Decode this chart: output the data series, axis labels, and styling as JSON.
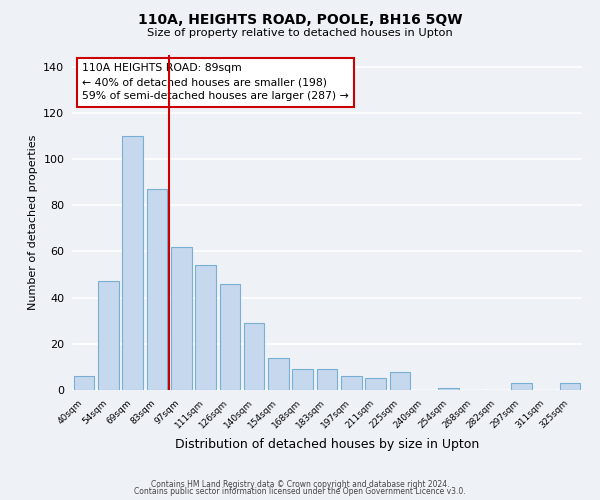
{
  "title": "110A, HEIGHTS ROAD, POOLE, BH16 5QW",
  "subtitle": "Size of property relative to detached houses in Upton",
  "xlabel": "Distribution of detached houses by size in Upton",
  "ylabel": "Number of detached properties",
  "bin_labels": [
    "40sqm",
    "54sqm",
    "69sqm",
    "83sqm",
    "97sqm",
    "111sqm",
    "126sqm",
    "140sqm",
    "154sqm",
    "168sqm",
    "183sqm",
    "197sqm",
    "211sqm",
    "225sqm",
    "240sqm",
    "254sqm",
    "268sqm",
    "282sqm",
    "297sqm",
    "311sqm",
    "325sqm"
  ],
  "bin_values": [
    6,
    47,
    110,
    87,
    62,
    54,
    46,
    29,
    14,
    9,
    9,
    6,
    5,
    8,
    0,
    1,
    0,
    0,
    3,
    0,
    3
  ],
  "bar_color": "#c5d8ed",
  "bar_edge_color": "#7aafd4",
  "property_line_index": 3,
  "property_line_color": "#cc0000",
  "annotation_text": "110A HEIGHTS ROAD: 89sqm\n← 40% of detached houses are smaller (198)\n59% of semi-detached houses are larger (287) →",
  "annotation_box_color": "#ffffff",
  "annotation_box_edge_color": "#cc0000",
  "ylim": [
    0,
    145
  ],
  "yticks": [
    0,
    20,
    40,
    60,
    80,
    100,
    120,
    140
  ],
  "bg_color": "#eef2f7",
  "grid_color": "#ffffff",
  "footer_line1": "Contains HM Land Registry data © Crown copyright and database right 2024.",
  "footer_line2": "Contains public sector information licensed under the Open Government Licence v3.0."
}
